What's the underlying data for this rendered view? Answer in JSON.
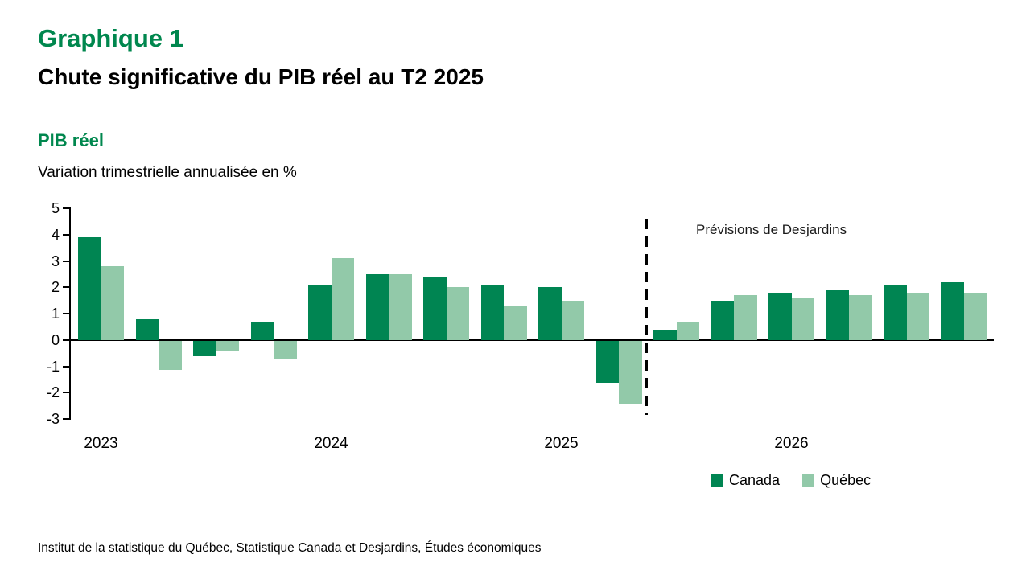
{
  "header": {
    "chart_number": "Graphique 1",
    "title": "Chute significative du PIB réel au T2 2025",
    "series_title": "PIB réel",
    "units_label": "Variation trimestrielle annualisée en %"
  },
  "source": "Institut de la statistique du Québec, Statistique Canada et Desjardins, Études économiques",
  "colors": {
    "heading_green": "#00874E",
    "canada_bar": "#008552",
    "quebec_bar": "#92C9A9",
    "axis": "#000000"
  },
  "chart_data": {
    "type": "bar",
    "title": "PIB réel",
    "subtitle": "Variation trimestrielle annualisée en %",
    "x": [
      "2023 T1",
      "2023 T2",
      "2023 T3",
      "2023 T4",
      "2024 T1",
      "2024 T2",
      "2024 T3",
      "2024 T4",
      "2025 T1",
      "2025 T2",
      "2025 T3",
      "2025 T4",
      "2026 T1",
      "2026 T2",
      "2026 T3",
      "2026 T4"
    ],
    "x_year_labels": [
      "2023",
      "2024",
      "2025",
      "2026"
    ],
    "series": [
      {
        "name": "Canada",
        "color": "#008552",
        "values": [
          3.9,
          0.8,
          -0.6,
          0.7,
          2.1,
          2.5,
          2.4,
          2.1,
          2.0,
          -1.6,
          0.4,
          1.5,
          1.8,
          1.9,
          2.1,
          2.2
        ]
      },
      {
        "name": "Québec",
        "color": "#92C9A9",
        "values": [
          2.8,
          -1.1,
          -0.4,
          -0.7,
          3.1,
          2.5,
          2.0,
          1.3,
          1.5,
          -2.4,
          0.7,
          1.7,
          1.6,
          1.7,
          1.8,
          1.8
        ]
      }
    ],
    "ylim": [
      -3,
      5
    ],
    "yticks": [
      5,
      4,
      3,
      2,
      1,
      0,
      -1,
      -2,
      -3
    ],
    "grid": false,
    "legend_position": "bottom-right",
    "forecast_start_index": 10,
    "forecast_label": "Prévisions de Desjardins"
  }
}
